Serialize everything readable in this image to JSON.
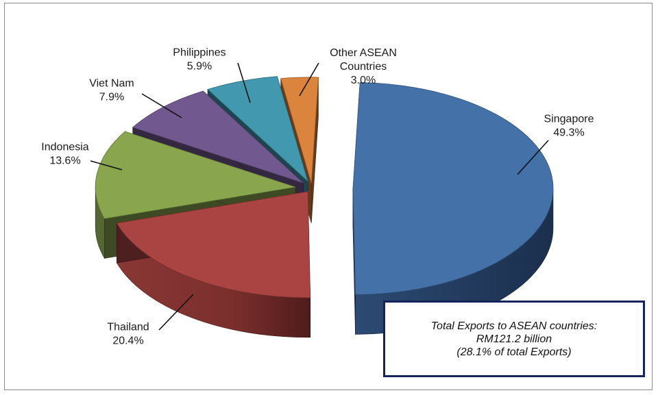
{
  "chart_data": {
    "type": "pie",
    "title": "",
    "slices": [
      {
        "label": "Singapore",
        "value": 49.3,
        "value_label": "49.3%",
        "color": "#4472a8"
      },
      {
        "label": "Thailand",
        "value": 20.4,
        "value_label": "20.4%",
        "color": "#aa4442"
      },
      {
        "label": "Indonesia",
        "value": 13.6,
        "value_label": "13.6%",
        "color": "#89a54e"
      },
      {
        "label": "Viet Nam",
        "value": 7.9,
        "value_label": "7.9%",
        "color": "#71588f"
      },
      {
        "label": "Philippines",
        "value": 5.9,
        "value_label": "5.9%",
        "color": "#4198af"
      },
      {
        "label": "Other ASEAN Countries",
        "value": 3.0,
        "value_label": "3.0%",
        "color": "#db843d"
      }
    ],
    "style": "3d-exploded-pie",
    "legend": "none"
  },
  "note": {
    "line1": "Total Exports to ASEAN countries:",
    "line2": "RM121.2 billion",
    "line3": "(28.1% of total Exports)"
  }
}
